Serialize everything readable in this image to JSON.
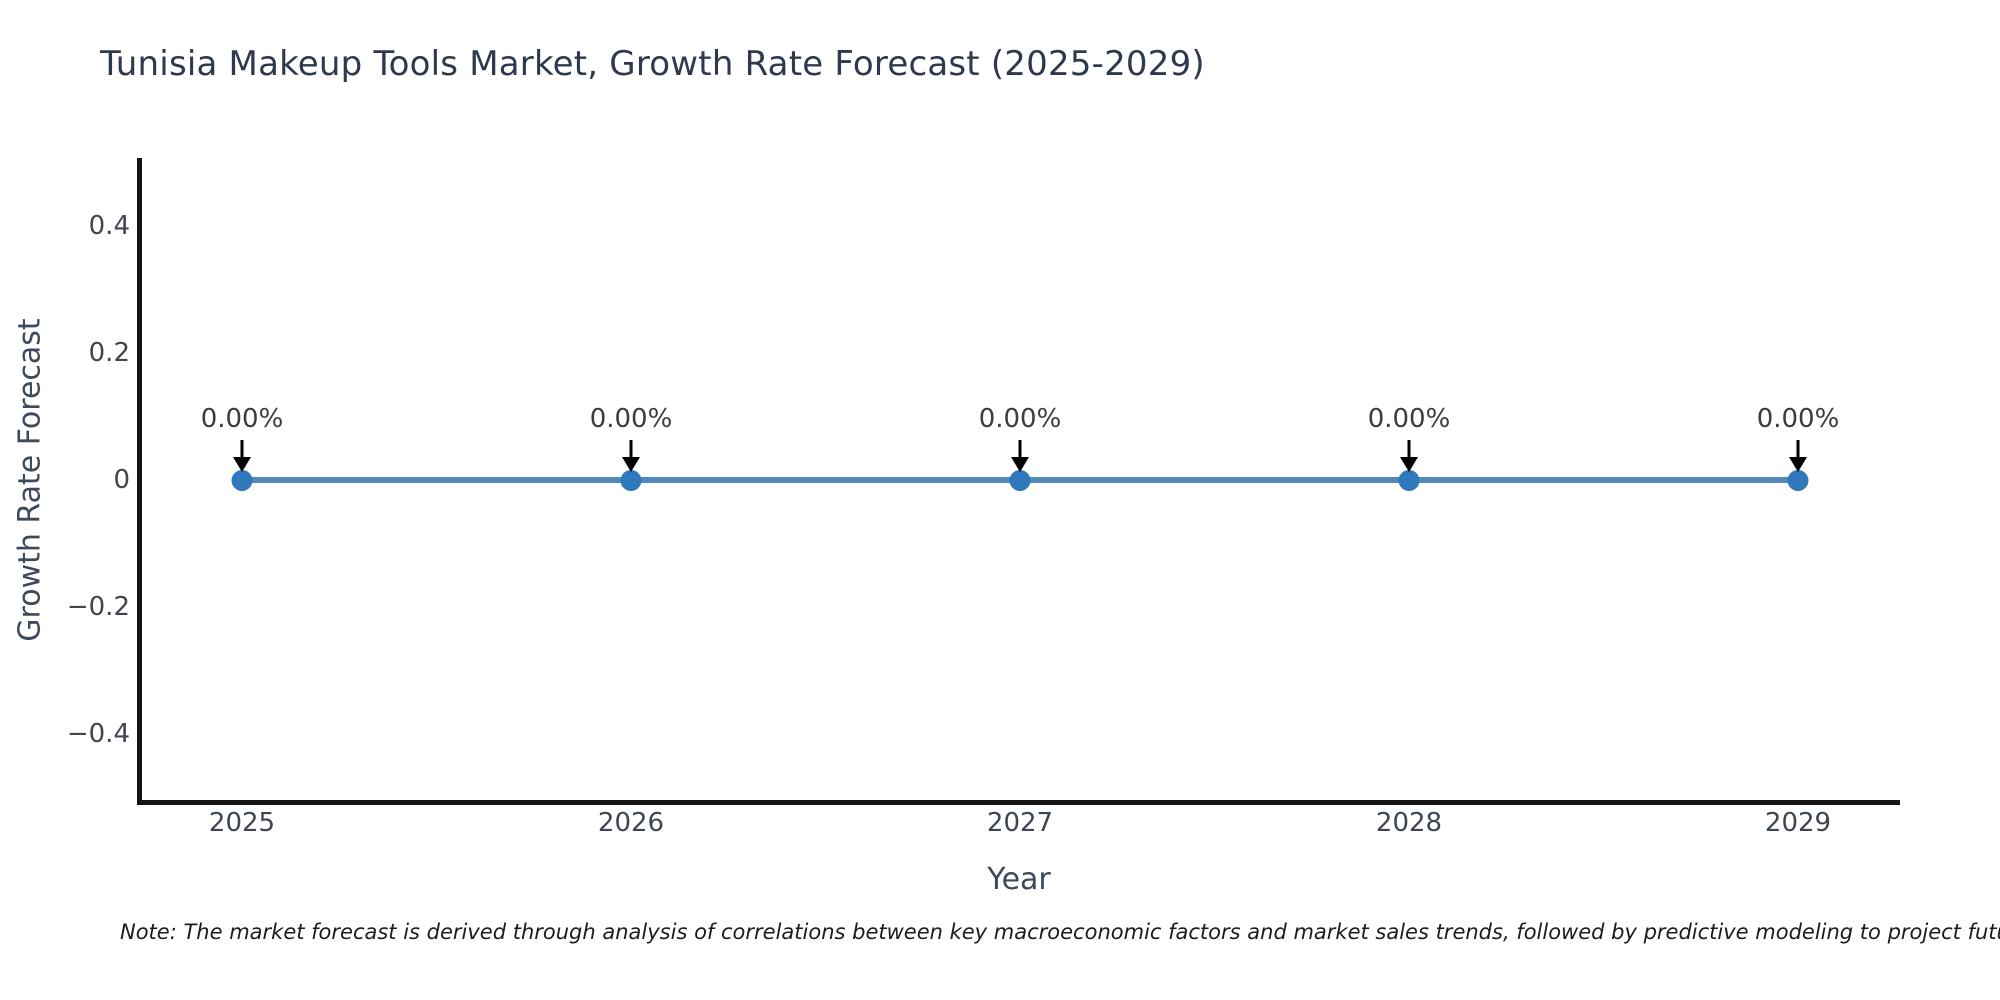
{
  "note": "Note: The market forecast is derived through analysis of correlations between key macroeconomic factors and market sales trends, followed by predictive modeling to project future sales",
  "chart_data": {
    "type": "line",
    "title": "Tunisia Makeup Tools Market, Growth Rate Forecast (2025-2029)",
    "xlabel": "Year",
    "ylabel": "Growth Rate Forecast",
    "x": [
      2025,
      2026,
      2027,
      2028,
      2029
    ],
    "xticks": [
      "2025",
      "2026",
      "2027",
      "2028",
      "2029"
    ],
    "series": [
      {
        "name": "Growth Rate Forecast",
        "values": [
          0,
          0,
          0,
          0,
          0
        ]
      }
    ],
    "point_labels": [
      "0.00%",
      "0.00%",
      "0.00%",
      "0.00%",
      "0.00%"
    ],
    "ylim": [
      -0.5,
      0.5
    ],
    "ytick_values": [
      0.4,
      0.2,
      0,
      -0.2,
      -0.4
    ],
    "ytick_labels": [
      "0.4",
      "0.2",
      "0",
      "−0.2",
      "−0.4"
    ],
    "grid": false,
    "legend": "none",
    "colors": {
      "line": "#5189b9",
      "marker": "#2e78bb",
      "annotation_arrow": "#000000",
      "annotation_text": "#3c3c3c",
      "spine": "#141414",
      "title": "#2e3950",
      "axis_label": "#3d4a5c",
      "tick_label": "#41454f"
    }
  }
}
